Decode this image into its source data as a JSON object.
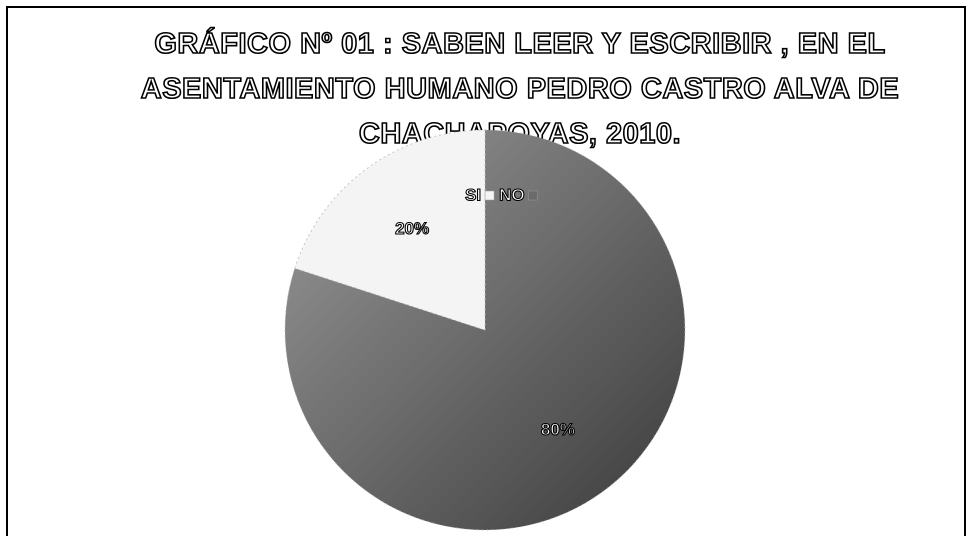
{
  "chart_data": {
    "type": "pie",
    "title": "GRÁFICO Nº 01 : SABEN LEER Y ESCRIBIR , EN EL ASENTAMIENTO HUMANO PEDRO CASTRO ALVA DE CHACHAPOYAS, 2010.",
    "categories": [
      "SI",
      "NO"
    ],
    "values": [
      80,
      20
    ],
    "value_labels": [
      "80%",
      "20%"
    ],
    "colors": [
      "#6b6b6b",
      "#f4f4f4"
    ],
    "legend": "top"
  }
}
